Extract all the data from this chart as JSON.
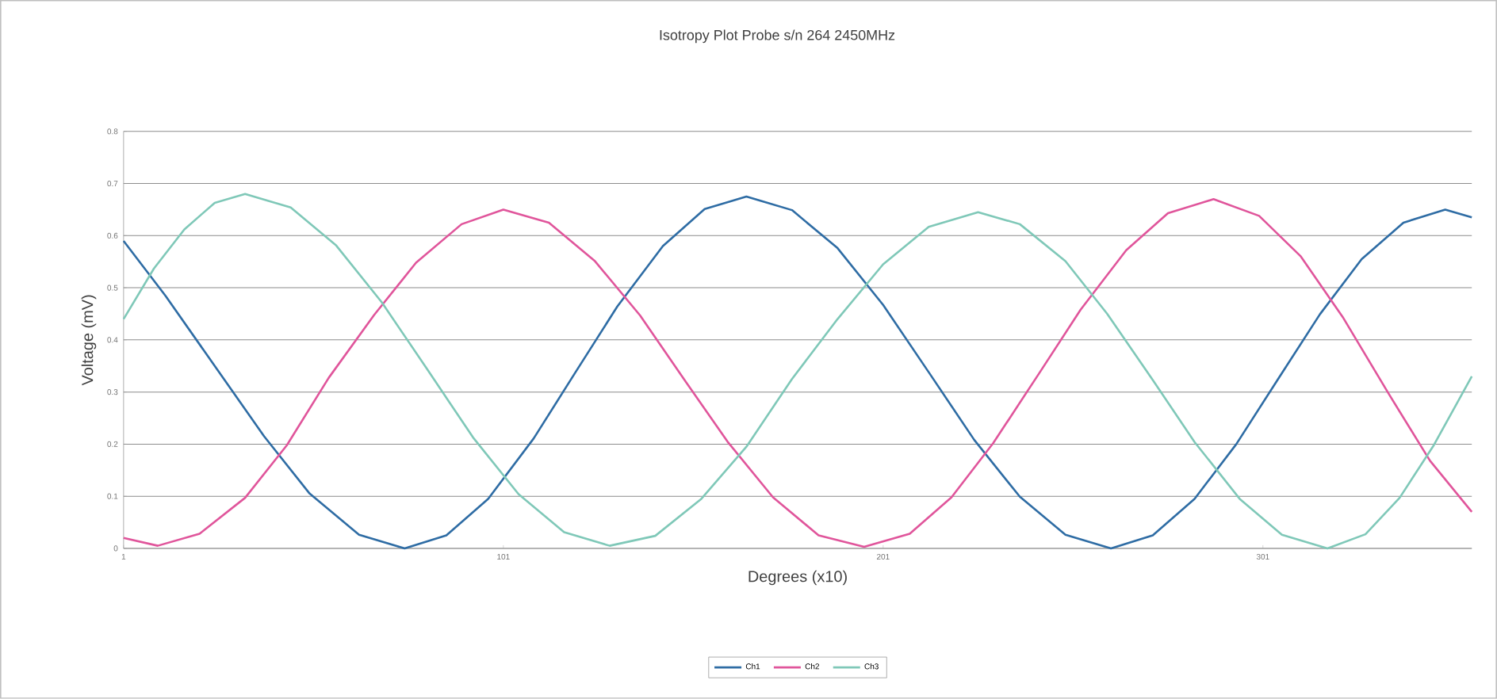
{
  "chart_data": {
    "type": "line",
    "title": "Isotropy Plot Probe s/n 264 2450MHz",
    "xlabel": "Degrees (x10)",
    "ylabel": "Voltage (mV)",
    "xlim": [
      1,
      356
    ],
    "xticks": [
      1,
      101,
      201,
      301
    ],
    "ylim": [
      0,
      0.8
    ],
    "yticks": [
      0,
      0.1,
      0.2,
      0.3,
      0.4,
      0.5,
      0.6,
      0.7,
      0.8
    ],
    "grid": "y",
    "legend": "bottom",
    "series": [
      {
        "name": "Ch1",
        "color": "#2e6ca4",
        "x": [
          1,
          12,
          25,
          38,
          50,
          63,
          75,
          86,
          97,
          109,
          120,
          131,
          143,
          154,
          165,
          177,
          189,
          201,
          213,
          225,
          237,
          249,
          261,
          272,
          283,
          294,
          305,
          316,
          327,
          338,
          349,
          356
        ],
        "values": [
          0.59,
          0.485,
          0.35,
          0.215,
          0.105,
          0.026,
          0.0,
          0.025,
          0.095,
          0.211,
          0.338,
          0.464,
          0.58,
          0.651,
          0.675,
          0.649,
          0.576,
          0.467,
          0.338,
          0.208,
          0.099,
          0.026,
          0.0,
          0.025,
          0.095,
          0.2,
          0.325,
          0.449,
          0.555,
          0.625,
          0.65,
          0.635
        ]
      },
      {
        "name": "Ch2",
        "color": "#e0559b",
        "x": [
          1,
          10,
          21,
          33,
          44,
          55,
          67,
          78,
          90,
          101,
          113,
          125,
          137,
          149,
          160,
          172,
          184,
          196,
          208,
          219,
          230,
          242,
          253,
          265,
          276,
          288,
          300,
          311,
          322,
          334,
          345,
          356
        ],
        "values": [
          0.02,
          0.005,
          0.028,
          0.097,
          0.198,
          0.327,
          0.448,
          0.548,
          0.622,
          0.65,
          0.625,
          0.552,
          0.447,
          0.32,
          0.205,
          0.098,
          0.025,
          0.003,
          0.028,
          0.098,
          0.202,
          0.335,
          0.458,
          0.572,
          0.643,
          0.67,
          0.638,
          0.56,
          0.444,
          0.298,
          0.168,
          0.07
        ]
      },
      {
        "name": "Ch3",
        "color": "#7fc8b8",
        "x": [
          1,
          9,
          17,
          25,
          33,
          45,
          57,
          69,
          81,
          93,
          105,
          117,
          129,
          141,
          153,
          165,
          177,
          189,
          201,
          213,
          226,
          237,
          249,
          260,
          272,
          283,
          295,
          306,
          318,
          328,
          337,
          346,
          356
        ],
        "values": [
          0.44,
          0.537,
          0.612,
          0.663,
          0.68,
          0.654,
          0.581,
          0.472,
          0.343,
          0.213,
          0.104,
          0.031,
          0.005,
          0.024,
          0.094,
          0.195,
          0.325,
          0.44,
          0.545,
          0.617,
          0.645,
          0.622,
          0.551,
          0.45,
          0.323,
          0.204,
          0.094,
          0.026,
          0.0,
          0.027,
          0.097,
          0.198,
          0.33
        ]
      }
    ]
  }
}
